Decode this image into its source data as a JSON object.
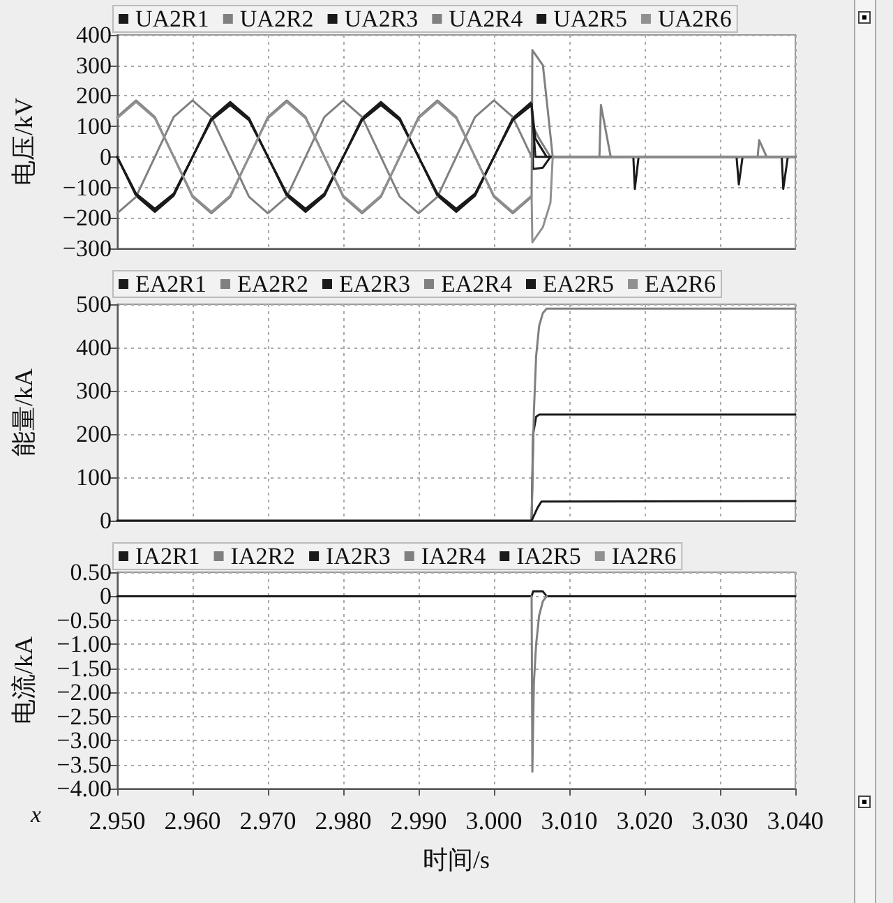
{
  "chart_data": [
    {
      "type": "line",
      "ylabel": "电压/kV",
      "legend": "top",
      "grid": true,
      "tick_labels": "y",
      "xlim": [
        2.95,
        3.04
      ],
      "xticks": [
        2.95,
        2.96,
        2.97,
        2.98,
        2.99,
        3.0,
        3.01,
        3.02,
        3.03,
        3.04
      ],
      "ylim": [
        -300,
        400
      ],
      "yticks": [
        {
          "value": -300,
          "label": "−300"
        },
        {
          "value": -200,
          "label": "−200"
        },
        {
          "value": -100,
          "label": "−100"
        },
        0,
        100,
        200,
        300,
        400
      ],
      "series": [
        {
          "name": "UA2R1",
          "color": "#1a1a1a",
          "x": [
            2.95,
            2.9525,
            2.955,
            2.9575,
            2.96,
            2.9625,
            2.965,
            2.9675,
            2.97,
            2.9725,
            2.975,
            2.9775,
            2.98,
            2.9825,
            2.985,
            2.9875,
            2.99,
            2.9925,
            2.995,
            2.9975,
            3.0,
            3.0025,
            3.005,
            3.0052,
            3.0065,
            3.0075,
            3.04
          ],
          "values": [
            0,
            -127,
            -180,
            -127,
            0,
            127,
            180,
            127,
            0,
            -127,
            -180,
            -127,
            0,
            127,
            180,
            127,
            0,
            -127,
            -180,
            -127,
            0,
            127,
            180,
            -40,
            -35,
            0,
            0
          ]
        },
        {
          "name": "UA2R2",
          "color": "#808080",
          "x": [
            2.95,
            2.9525,
            2.955,
            2.9575,
            2.96,
            2.9625,
            2.965,
            2.9675,
            2.97,
            2.9725,
            2.975,
            2.9775,
            2.98,
            2.9825,
            2.985,
            2.9875,
            2.99,
            2.9925,
            2.995,
            2.9975,
            3.0,
            3.0025,
            3.005,
            3.0052,
            3.006,
            3.0075,
            3.014,
            3.0142,
            3.0155,
            3.035,
            3.0352,
            3.0362,
            3.04
          ],
          "values": [
            -185,
            -131,
            0,
            131,
            185,
            131,
            0,
            -131,
            -185,
            -131,
            0,
            131,
            185,
            131,
            0,
            -131,
            -185,
            -131,
            0,
            131,
            185,
            131,
            0,
            100,
            60,
            0,
            0,
            170,
            0,
            0,
            55,
            0,
            0
          ]
        },
        {
          "name": "UA2R3",
          "color": "#1a1a1a",
          "x": [
            2.95,
            2.9525,
            2.955,
            2.9575,
            2.96,
            2.9625,
            2.965,
            2.9675,
            2.97,
            2.9725,
            2.975,
            2.9775,
            2.98,
            2.9825,
            2.985,
            2.9875,
            2.99,
            2.9925,
            2.995,
            2.9975,
            3.0,
            3.0025,
            3.005,
            3.0055,
            3.007,
            3.04
          ],
          "values": [
            0,
            -120,
            -170,
            -120,
            0,
            120,
            170,
            120,
            0,
            -120,
            -170,
            -120,
            0,
            120,
            170,
            120,
            0,
            -120,
            -170,
            -120,
            0,
            120,
            170,
            60,
            0,
            0
          ]
        },
        {
          "name": "UA2R4",
          "color": "#808080",
          "x": [
            2.95,
            2.9525,
            2.955,
            2.9575,
            2.96,
            2.9625,
            2.965,
            2.9675,
            2.97,
            2.9725,
            2.975,
            2.9775,
            2.98,
            2.9825,
            2.985,
            2.9875,
            2.99,
            2.9925,
            2.995,
            2.9975,
            3.0,
            3.0025,
            3.005,
            3.0051,
            3.0065,
            3.0072,
            3.0078,
            3.04
          ],
          "values": [
            131,
            185,
            131,
            0,
            -131,
            -185,
            -131,
            0,
            131,
            185,
            131,
            0,
            -131,
            -185,
            -131,
            0,
            131,
            185,
            131,
            0,
            -131,
            -185,
            -131,
            350,
            300,
            140,
            0,
            0
          ]
        },
        {
          "name": "UA2R5",
          "color": "#1a1a1a",
          "x": [
            2.95,
            2.9525,
            2.955,
            2.9575,
            2.96,
            2.9625,
            2.965,
            2.9675,
            2.97,
            2.9725,
            2.975,
            2.9775,
            2.98,
            2.9825,
            2.985,
            2.9875,
            2.99,
            2.9925,
            2.995,
            2.9975,
            3.0,
            3.0025,
            3.005,
            3.0055,
            3.0185,
            3.0187,
            3.0192,
            3.0322,
            3.0325,
            3.033,
            3.0382,
            3.0384,
            3.039,
            3.04
          ],
          "values": [
            0,
            -124,
            -175,
            -124,
            0,
            124,
            175,
            124,
            0,
            -124,
            -175,
            -124,
            0,
            124,
            175,
            124,
            0,
            -124,
            -175,
            -124,
            0,
            124,
            175,
            0,
            0,
            -105,
            0,
            0,
            -90,
            0,
            0,
            -105,
            0,
            0
          ]
        },
        {
          "name": "UA2R6",
          "color": "#909090",
          "x": [
            2.95,
            2.9525,
            2.955,
            2.9575,
            2.96,
            2.9625,
            2.965,
            2.9675,
            2.97,
            2.9725,
            2.975,
            2.9775,
            2.98,
            2.9825,
            2.985,
            2.9875,
            2.99,
            2.9925,
            2.995,
            2.9975,
            3.0,
            3.0025,
            3.005,
            3.0051,
            3.0065,
            3.0075,
            3.0078,
            3.04
          ],
          "values": [
            127,
            180,
            127,
            0,
            -127,
            -180,
            -127,
            0,
            127,
            180,
            127,
            0,
            -127,
            -180,
            -127,
            0,
            127,
            180,
            127,
            0,
            -127,
            -180,
            -127,
            -280,
            -230,
            -150,
            0,
            0
          ]
        }
      ]
    },
    {
      "type": "line",
      "ylabel": "能量/kA",
      "legend": "top",
      "grid": true,
      "tick_labels": "y",
      "xlim": [
        2.95,
        3.04
      ],
      "xticks": [
        2.95,
        2.96,
        2.97,
        2.98,
        2.99,
        3.0,
        3.01,
        3.02,
        3.03,
        3.04
      ],
      "ylim": [
        0,
        500
      ],
      "yticks": [
        0,
        100,
        200,
        300,
        400,
        500
      ],
      "series": [
        {
          "name": "EA2R1",
          "color": "#1a1a1a",
          "x": [
            3.005,
            3.0052,
            3.0056,
            3.006,
            3.04
          ],
          "values": [
            0,
            200,
            240,
            245,
            245
          ]
        },
        {
          "name": "EA2R2",
          "color": "#808080"
        },
        {
          "name": "EA2R3",
          "color": "#1a1a1a"
        },
        {
          "name": "EA2R4",
          "color": "#808080",
          "x": [
            3.005,
            3.0053,
            3.0056,
            3.006,
            3.0065,
            3.007,
            3.04
          ],
          "values": [
            0,
            250,
            380,
            450,
            480,
            490,
            490
          ]
        },
        {
          "name": "EA2R5",
          "color": "#1a1a1a",
          "x": [
            2.95,
            3.005,
            3.0058,
            3.0063,
            3.04
          ],
          "values": [
            0,
            0,
            30,
            44,
            45
          ]
        },
        {
          "name": "EA2R6",
          "color": "#909090"
        }
      ]
    },
    {
      "type": "line",
      "ylabel": "电流/kA",
      "xlabel": "时间/s",
      "legend": "top",
      "grid": true,
      "annotations": [
        "x"
      ],
      "xlim": [
        2.95,
        3.04
      ],
      "xticks": [
        {
          "value": 2.95,
          "label": "2.950"
        },
        {
          "value": 2.96,
          "label": "2.960"
        },
        {
          "value": 2.97,
          "label": "2.970"
        },
        {
          "value": 2.98,
          "label": "2.980"
        },
        {
          "value": 2.99,
          "label": "2.990"
        },
        {
          "value": 3.0,
          "label": "3.000"
        },
        {
          "value": 3.01,
          "label": "3.010"
        },
        {
          "value": 3.02,
          "label": "3.020"
        },
        {
          "value": 3.03,
          "label": "3.030"
        },
        {
          "value": 3.04,
          "label": "3.040"
        }
      ],
      "ylim": [
        -4,
        0.5
      ],
      "yticks": [
        {
          "value": -4,
          "label": "−4.00"
        },
        {
          "value": -3.5,
          "label": "−3.50"
        },
        {
          "value": -3,
          "label": "−3.00"
        },
        {
          "value": -2.5,
          "label": "−2.50"
        },
        {
          "value": -2,
          "label": "−2.00"
        },
        {
          "value": -1.5,
          "label": "−1.50"
        },
        {
          "value": -1,
          "label": "−1.00"
        },
        {
          "value": -0.5,
          "label": "−0.50"
        },
        0,
        {
          "value": 0.5,
          "label": "0.50"
        }
      ],
      "series": [
        {
          "name": "IA2R1",
          "color": "#1a1a1a",
          "x": [
            2.95,
            3.005,
            3.0052,
            3.0065,
            3.007,
            3.04
          ],
          "values": [
            0,
            0,
            0.1,
            0.1,
            0,
            0
          ]
        },
        {
          "name": "IA2R2",
          "color": "#808080"
        },
        {
          "name": "IA2R3",
          "color": "#1a1a1a"
        },
        {
          "name": "IA2R4",
          "color": "#808080",
          "x": [
            3.005,
            3.0051,
            3.0053,
            3.0056,
            3.006,
            3.0065,
            3.007
          ],
          "values": [
            0,
            -3.65,
            -1.8,
            -1.0,
            -0.4,
            -0.1,
            0
          ]
        },
        {
          "name": "IA2R5",
          "color": "#1a1a1a"
        },
        {
          "name": "IA2R6",
          "color": "#909090"
        }
      ]
    }
  ]
}
